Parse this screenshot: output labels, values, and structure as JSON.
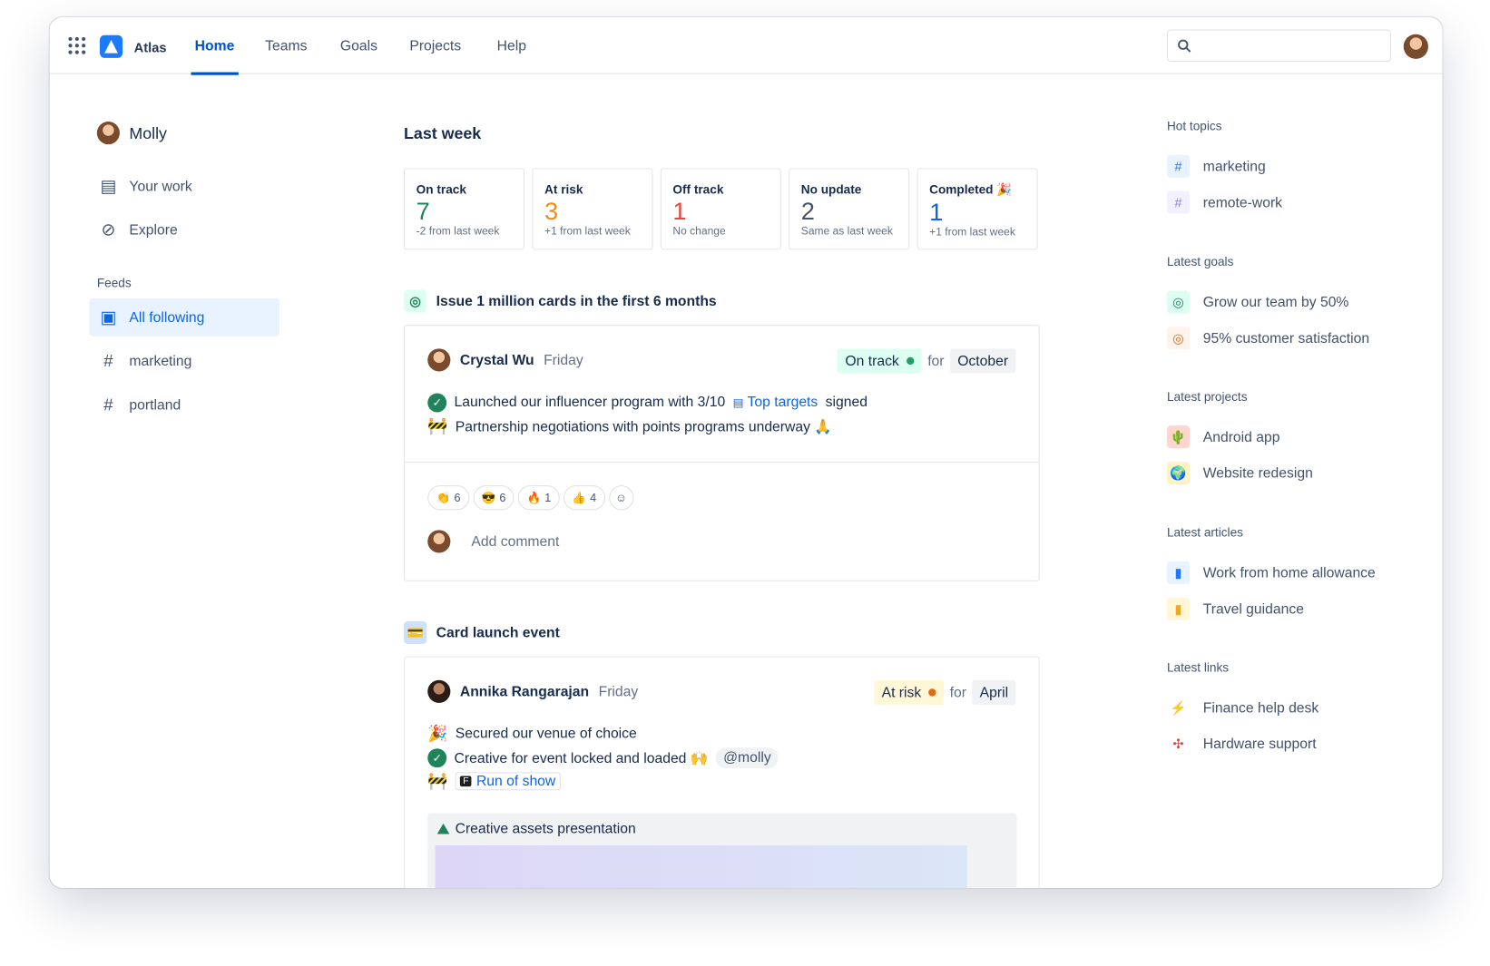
{
  "app": {
    "name": "Atlas",
    "nav": [
      "Home",
      "Teams",
      "Goals",
      "Projects",
      "Help"
    ],
    "active_nav": "Home",
    "search_placeholder": ""
  },
  "sidebar": {
    "user": "Molly",
    "items": [
      "Your work",
      "Explore"
    ],
    "feeds_heading": "Feeds",
    "feeds": [
      "All following",
      "marketing",
      "portland"
    ]
  },
  "summary": {
    "heading": "Last week",
    "cards": [
      {
        "label": "On track",
        "value": "7",
        "sub": "-2 from last week",
        "color": "#1f845a"
      },
      {
        "label": "At risk",
        "value": "3",
        "sub": "+1 from last week",
        "color": "#f18d13"
      },
      {
        "label": "Off track",
        "value": "1",
        "sub": "No change",
        "color": "#e2483d"
      },
      {
        "label": "No update",
        "value": "2",
        "sub": "Same as last week",
        "color": "#44546f"
      },
      {
        "label": "Completed 🎉",
        "value": "1",
        "sub": "+1 from last week",
        "color": "#0c66e4"
      }
    ]
  },
  "posts": [
    {
      "goal": "Issue 1 million cards in the first 6 months",
      "author": "Crystal Wu",
      "day": "Friday",
      "status": "On track",
      "for": "for",
      "period": "October",
      "lines": [
        {
          "icon": "check",
          "pre": "Launched our influencer program with 3/10",
          "link": "Top targets",
          "post": "signed"
        },
        {
          "icon": "🚧",
          "pre": "Partnership negotiations with points programs underway 🙏"
        }
      ],
      "reactions": [
        {
          "emoji": "👏",
          "count": "6"
        },
        {
          "emoji": "😎",
          "count": "6"
        },
        {
          "emoji": "🔥",
          "count": "1"
        },
        {
          "emoji": "👍",
          "count": "4"
        }
      ],
      "comment_placeholder": "Add comment"
    },
    {
      "goal": "Card launch event",
      "author": "Annika Rangarajan",
      "day": "Friday",
      "status": "At risk",
      "for": "for",
      "period": "April",
      "lines": [
        {
          "icon": "🎉",
          "pre": "Secured our venue of choice"
        },
        {
          "icon": "check",
          "pre": "Creative for event locked and loaded 🙌",
          "mention": "@molly"
        },
        {
          "icon": "🚧",
          "link": "Run of show"
        }
      ],
      "attachment": "Creative assets presentation"
    }
  ],
  "right": {
    "hot_topics": {
      "heading": "Hot topics",
      "items": [
        "marketing",
        "remote-work"
      ]
    },
    "goals": {
      "heading": "Latest goals",
      "items": [
        "Grow our team by 50%",
        "95% customer satisfaction"
      ]
    },
    "projects": {
      "heading": "Latest projects",
      "items": [
        "Android app",
        "Website redesign"
      ]
    },
    "articles": {
      "heading": "Latest articles",
      "items": [
        "Work from home allowance",
        "Travel guidance"
      ]
    },
    "links": {
      "heading": "Latest links",
      "items": [
        "Finance help desk",
        "Hardware support"
      ]
    }
  }
}
